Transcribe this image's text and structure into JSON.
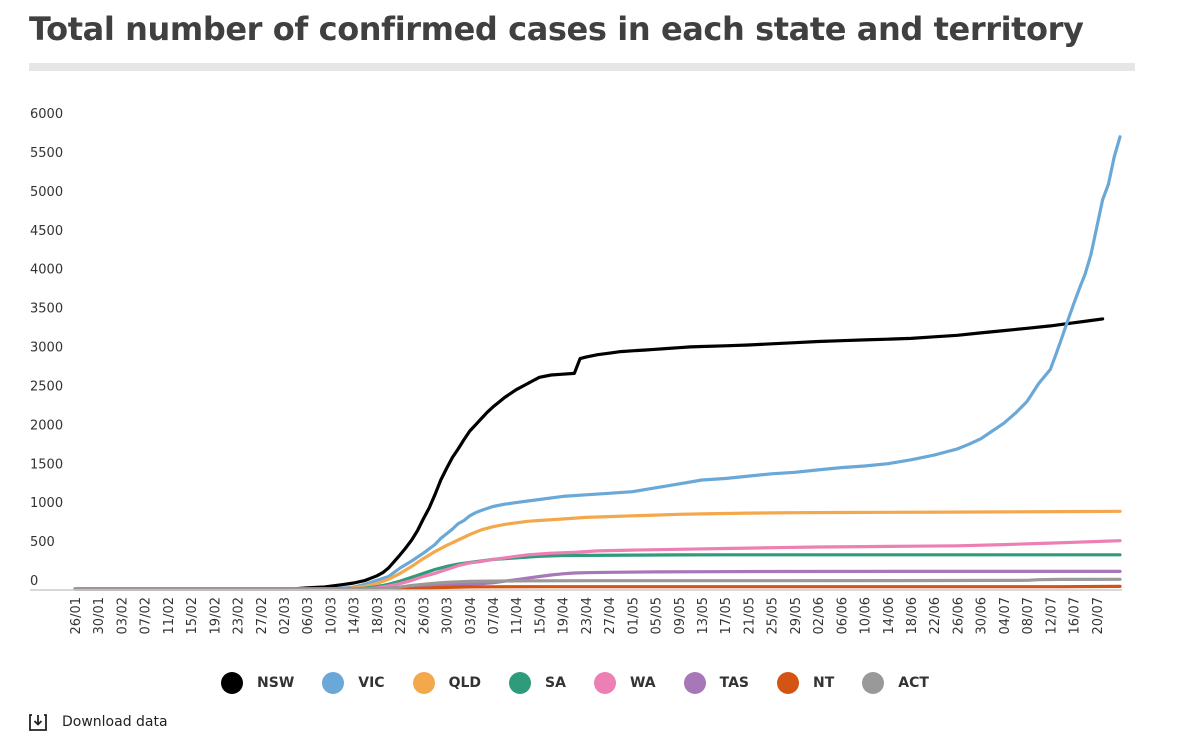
{
  "title": "Total number of confirmed cases in each state and territory",
  "download_label": "Download data",
  "download_icon": "download-icon",
  "chart_data": {
    "type": "line",
    "title": "Total number of confirmed cases in each state and territory",
    "xlabel": "",
    "ylabel": "",
    "ylim": [
      0,
      6000
    ],
    "yticks": [
      0,
      500,
      1000,
      1500,
      2000,
      2500,
      3000,
      3500,
      4000,
      4500,
      5000,
      5500,
      6000
    ],
    "grid": false,
    "legend_position": "bottom",
    "x_tick_labels": [
      "26/01",
      "30/01",
      "03/02",
      "07/02",
      "11/02",
      "15/02",
      "19/02",
      "23/02",
      "27/02",
      "02/03",
      "06/03",
      "10/03",
      "14/03",
      "18/03",
      "22/03",
      "26/03",
      "30/03",
      "03/04",
      "07/04",
      "11/04",
      "15/04",
      "19/04",
      "23/04",
      "27/04",
      "01/05",
      "05/05",
      "09/05",
      "13/05",
      "17/05",
      "21/05",
      "25/05",
      "29/05",
      "02/06",
      "06/06",
      "10/06",
      "14/06",
      "18/06",
      "22/06",
      "26/06",
      "30/06",
      "04/07",
      "08/07",
      "12/07",
      "16/07",
      "20/07"
    ],
    "x_tick_index": [
      0,
      4,
      8,
      12,
      16,
      20,
      24,
      28,
      32,
      36,
      40,
      44,
      48,
      52,
      56,
      60,
      64,
      68,
      72,
      76,
      80,
      84,
      88,
      92,
      96,
      100,
      104,
      108,
      112,
      116,
      120,
      124,
      128,
      132,
      136,
      140,
      144,
      148,
      152,
      156,
      160,
      164,
      168,
      172,
      176
    ],
    "x_start_index": 0,
    "x_end_index": 177,
    "series": [
      {
        "name": "NSW",
        "color": "#000000",
        "points": [
          [
            0,
            0
          ],
          [
            36,
            0
          ],
          [
            38,
            4
          ],
          [
            40,
            15
          ],
          [
            43,
            26
          ],
          [
            46,
            55
          ],
          [
            48,
            77
          ],
          [
            50,
            110
          ],
          [
            52,
            170
          ],
          [
            53,
            210
          ],
          [
            54,
            270
          ],
          [
            55,
            355
          ],
          [
            56,
            440
          ],
          [
            57,
            530
          ],
          [
            58,
            630
          ],
          [
            59,
            750
          ],
          [
            60,
            900
          ],
          [
            61,
            1040
          ],
          [
            62,
            1210
          ],
          [
            63,
            1400
          ],
          [
            64,
            1550
          ],
          [
            65,
            1690
          ],
          [
            66,
            1800
          ],
          [
            67,
            1920
          ],
          [
            68,
            2030
          ],
          [
            69,
            2110
          ],
          [
            70,
            2190
          ],
          [
            71,
            2270
          ],
          [
            72,
            2340
          ],
          [
            73,
            2400
          ],
          [
            74,
            2460
          ],
          [
            75,
            2510
          ],
          [
            76,
            2560
          ],
          [
            78,
            2640
          ],
          [
            79,
            2680
          ],
          [
            80,
            2720
          ],
          [
            82,
            2750
          ],
          [
            84,
            2760
          ],
          [
            86,
            2770
          ],
          [
            87,
            2960
          ],
          [
            88,
            2980
          ],
          [
            90,
            3010
          ],
          [
            92,
            3030
          ],
          [
            94,
            3050
          ],
          [
            96,
            3060
          ],
          [
            98,
            3070
          ],
          [
            100,
            3080
          ],
          [
            102,
            3090
          ],
          [
            104,
            3100
          ],
          [
            106,
            3110
          ],
          [
            108,
            3115
          ],
          [
            112,
            3125
          ],
          [
            116,
            3135
          ],
          [
            120,
            3150
          ],
          [
            124,
            3165
          ],
          [
            128,
            3180
          ],
          [
            132,
            3190
          ],
          [
            136,
            3200
          ],
          [
            140,
            3210
          ],
          [
            144,
            3220
          ],
          [
            148,
            3240
          ],
          [
            152,
            3260
          ],
          [
            156,
            3290
          ],
          [
            160,
            3320
          ],
          [
            164,
            3350
          ],
          [
            168,
            3380
          ],
          [
            172,
            3420
          ],
          [
            175,
            3450
          ],
          [
            177,
            3470
          ]
        ]
      },
      {
        "name": "VIC",
        "color": "#6aa8d8",
        "points": [
          [
            0,
            0
          ],
          [
            44,
            0
          ],
          [
            46,
            10
          ],
          [
            48,
            25
          ],
          [
            50,
            60
          ],
          [
            52,
            110
          ],
          [
            54,
            160
          ],
          [
            56,
            270
          ],
          [
            58,
            360
          ],
          [
            60,
            460
          ],
          [
            62,
            570
          ],
          [
            63,
            650
          ],
          [
            64,
            710
          ],
          [
            65,
            770
          ],
          [
            66,
            840
          ],
          [
            67,
            880
          ],
          [
            68,
            940
          ],
          [
            69,
            980
          ],
          [
            70,
            1010
          ],
          [
            72,
            1060
          ],
          [
            74,
            1090
          ],
          [
            76,
            1110
          ],
          [
            78,
            1130
          ],
          [
            80,
            1150
          ],
          [
            84,
            1190
          ],
          [
            88,
            1210
          ],
          [
            92,
            1230
          ],
          [
            96,
            1250
          ],
          [
            100,
            1300
          ],
          [
            104,
            1350
          ],
          [
            108,
            1400
          ],
          [
            112,
            1420
          ],
          [
            116,
            1450
          ],
          [
            120,
            1480
          ],
          [
            124,
            1500
          ],
          [
            128,
            1530
          ],
          [
            132,
            1560
          ],
          [
            136,
            1580
          ],
          [
            140,
            1610
          ],
          [
            144,
            1660
          ],
          [
            148,
            1720
          ],
          [
            150,
            1760
          ],
          [
            152,
            1800
          ],
          [
            154,
            1860
          ],
          [
            156,
            1930
          ],
          [
            158,
            2030
          ],
          [
            160,
            2130
          ],
          [
            162,
            2260
          ],
          [
            164,
            2410
          ],
          [
            166,
            2640
          ],
          [
            168,
            2820
          ],
          [
            169,
            3020
          ],
          [
            170,
            3230
          ],
          [
            171,
            3450
          ],
          [
            172,
            3660
          ],
          [
            173,
            3860
          ],
          [
            174,
            4050
          ],
          [
            175,
            4300
          ],
          [
            176,
            4650
          ],
          [
            177,
            5000
          ],
          [
            178,
            5200
          ],
          [
            179,
            5550
          ],
          [
            180,
            5810
          ]
        ]
      },
      {
        "name": "QLD",
        "color": "#f4a84c",
        "points": [
          [
            0,
            0
          ],
          [
            46,
            0
          ],
          [
            48,
            15
          ],
          [
            50,
            35
          ],
          [
            52,
            70
          ],
          [
            54,
            125
          ],
          [
            56,
            200
          ],
          [
            58,
            290
          ],
          [
            60,
            390
          ],
          [
            62,
            480
          ],
          [
            64,
            560
          ],
          [
            66,
            630
          ],
          [
            68,
            700
          ],
          [
            70,
            760
          ],
          [
            72,
            800
          ],
          [
            74,
            830
          ],
          [
            76,
            850
          ],
          [
            78,
            870
          ],
          [
            80,
            880
          ],
          [
            84,
            900
          ],
          [
            88,
            920
          ],
          [
            92,
            930
          ],
          [
            96,
            940
          ],
          [
            100,
            950
          ],
          [
            104,
            960
          ],
          [
            108,
            965
          ],
          [
            112,
            970
          ],
          [
            116,
            975
          ],
          [
            120,
            978
          ],
          [
            124,
            980
          ],
          [
            132,
            983
          ],
          [
            140,
            985
          ],
          [
            150,
            988
          ],
          [
            160,
            990
          ],
          [
            170,
            995
          ],
          [
            180,
            998
          ]
        ]
      },
      {
        "name": "SA",
        "color": "#2e9b7a",
        "points": [
          [
            0,
            0
          ],
          [
            48,
            0
          ],
          [
            50,
            10
          ],
          [
            52,
            30
          ],
          [
            54,
            60
          ],
          [
            56,
            100
          ],
          [
            58,
            150
          ],
          [
            60,
            200
          ],
          [
            62,
            250
          ],
          [
            64,
            290
          ],
          [
            66,
            320
          ],
          [
            68,
            340
          ],
          [
            70,
            360
          ],
          [
            72,
            380
          ],
          [
            76,
            400
          ],
          [
            80,
            420
          ],
          [
            84,
            430
          ],
          [
            88,
            432
          ],
          [
            96,
            435
          ],
          [
            104,
            438
          ],
          [
            112,
            440
          ],
          [
            120,
            440
          ],
          [
            130,
            440
          ],
          [
            140,
            440
          ],
          [
            150,
            440
          ],
          [
            160,
            440
          ],
          [
            170,
            440
          ],
          [
            180,
            440
          ]
        ]
      },
      {
        "name": "WA",
        "color": "#ec7fb3",
        "points": [
          [
            0,
            0
          ],
          [
            50,
            0
          ],
          [
            52,
            15
          ],
          [
            54,
            40
          ],
          [
            56,
            70
          ],
          [
            58,
            110
          ],
          [
            60,
            160
          ],
          [
            62,
            200
          ],
          [
            64,
            250
          ],
          [
            66,
            300
          ],
          [
            68,
            335
          ],
          [
            70,
            355
          ],
          [
            72,
            380
          ],
          [
            74,
            400
          ],
          [
            76,
            420
          ],
          [
            78,
            440
          ],
          [
            82,
            460
          ],
          [
            86,
            470
          ],
          [
            90,
            490
          ],
          [
            96,
            500
          ],
          [
            104,
            510
          ],
          [
            112,
            520
          ],
          [
            120,
            530
          ],
          [
            128,
            540
          ],
          [
            136,
            545
          ],
          [
            144,
            550
          ],
          [
            152,
            555
          ],
          [
            160,
            570
          ],
          [
            168,
            590
          ],
          [
            172,
            600
          ],
          [
            176,
            610
          ],
          [
            180,
            620
          ]
        ]
      },
      {
        "name": "TAS",
        "color": "#a877b8",
        "points": [
          [
            0,
            0
          ],
          [
            54,
            0
          ],
          [
            56,
            10
          ],
          [
            58,
            20
          ],
          [
            60,
            30
          ],
          [
            62,
            40
          ],
          [
            64,
            50
          ],
          [
            66,
            60
          ],
          [
            68,
            65
          ],
          [
            70,
            70
          ],
          [
            72,
            80
          ],
          [
            74,
            100
          ],
          [
            76,
            120
          ],
          [
            78,
            140
          ],
          [
            80,
            160
          ],
          [
            82,
            180
          ],
          [
            84,
            195
          ],
          [
            86,
            205
          ],
          [
            88,
            210
          ],
          [
            92,
            215
          ],
          [
            100,
            220
          ],
          [
            110,
            222
          ],
          [
            120,
            225
          ],
          [
            140,
            226
          ],
          [
            160,
            226
          ],
          [
            180,
            226
          ]
        ]
      },
      {
        "name": "NT",
        "color": "#d45414",
        "points": [
          [
            0,
            0
          ],
          [
            56,
            0
          ],
          [
            58,
            5
          ],
          [
            60,
            10
          ],
          [
            62,
            15
          ],
          [
            64,
            20
          ],
          [
            66,
            25
          ],
          [
            68,
            27
          ],
          [
            72,
            28
          ],
          [
            80,
            29
          ],
          [
            100,
            29
          ],
          [
            120,
            29
          ],
          [
            140,
            29
          ],
          [
            160,
            29
          ],
          [
            170,
            30
          ],
          [
            180,
            33
          ]
        ]
      },
      {
        "name": "ACT",
        "color": "#999999",
        "points": [
          [
            0,
            0
          ],
          [
            52,
            0
          ],
          [
            54,
            10
          ],
          [
            56,
            25
          ],
          [
            58,
            45
          ],
          [
            60,
            60
          ],
          [
            62,
            75
          ],
          [
            64,
            85
          ],
          [
            66,
            92
          ],
          [
            68,
            98
          ],
          [
            70,
            100
          ],
          [
            72,
            102
          ],
          [
            76,
            104
          ],
          [
            80,
            105
          ],
          [
            90,
            106
          ],
          [
            100,
            107
          ],
          [
            120,
            107
          ],
          [
            140,
            108
          ],
          [
            160,
            110
          ],
          [
            164,
            112
          ],
          [
            166,
            120
          ],
          [
            170,
            123
          ],
          [
            180,
            124
          ]
        ]
      }
    ]
  }
}
